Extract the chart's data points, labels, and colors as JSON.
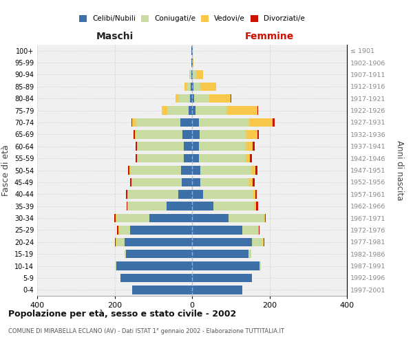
{
  "age_groups": [
    "0-4",
    "5-9",
    "10-14",
    "15-19",
    "20-24",
    "25-29",
    "30-34",
    "35-39",
    "40-44",
    "45-49",
    "50-54",
    "55-59",
    "60-64",
    "65-69",
    "70-74",
    "75-79",
    "80-84",
    "85-89",
    "90-94",
    "95-99",
    "100+"
  ],
  "birth_years": [
    "1997-2001",
    "1992-1996",
    "1987-1991",
    "1982-1986",
    "1977-1981",
    "1972-1976",
    "1967-1971",
    "1962-1966",
    "1957-1961",
    "1952-1956",
    "1947-1951",
    "1942-1946",
    "1937-1941",
    "1932-1936",
    "1927-1931",
    "1922-1926",
    "1917-1921",
    "1912-1916",
    "1907-1911",
    "1902-1906",
    "≤ 1901"
  ],
  "maschi": {
    "celibi": [
      155,
      185,
      195,
      170,
      175,
      160,
      110,
      65,
      35,
      26,
      28,
      22,
      22,
      25,
      30,
      9,
      5,
      3,
      2,
      1,
      1
    ],
    "coniugati": [
      0,
      0,
      2,
      5,
      20,
      28,
      85,
      100,
      130,
      128,
      130,
      118,
      118,
      120,
      115,
      55,
      28,
      12,
      5,
      1,
      0
    ],
    "vedovi": [
      0,
      0,
      0,
      0,
      2,
      2,
      3,
      2,
      2,
      2,
      3,
      2,
      2,
      3,
      10,
      15,
      10,
      5,
      1,
      0,
      0
    ],
    "divorziati": [
      0,
      0,
      0,
      0,
      2,
      3,
      3,
      2,
      3,
      4,
      5,
      4,
      4,
      3,
      2,
      0,
      0,
      0,
      0,
      0,
      0
    ]
  },
  "femmine": {
    "nubili": [
      130,
      155,
      175,
      145,
      155,
      130,
      95,
      55,
      28,
      22,
      22,
      18,
      18,
      20,
      18,
      8,
      5,
      4,
      2,
      1,
      1
    ],
    "coniugate": [
      0,
      0,
      2,
      8,
      28,
      40,
      90,
      105,
      130,
      125,
      130,
      120,
      120,
      120,
      130,
      80,
      40,
      18,
      8,
      1,
      0
    ],
    "vedove": [
      0,
      0,
      0,
      0,
      2,
      2,
      3,
      5,
      5,
      10,
      12,
      12,
      18,
      28,
      60,
      80,
      55,
      40,
      18,
      2,
      0
    ],
    "divorziate": [
      0,
      0,
      0,
      0,
      1,
      2,
      2,
      5,
      4,
      5,
      5,
      4,
      5,
      5,
      5,
      3,
      1,
      1,
      0,
      0,
      0
    ]
  },
  "colors": {
    "celibi": "#3d6fa8",
    "coniugati": "#c8dba0",
    "vedovi": "#f7c84a",
    "divorziati": "#cc1100"
  },
  "xlim": 400,
  "title": "Popolazione per età, sesso e stato civile - 2002",
  "subtitle": "COMUNE DI MIRABELLA ECLANO (AV) - Dati ISTAT 1° gennaio 2002 - Elaborazione TUTTITALIA.IT",
  "ylabel": "Fasce di età",
  "ylabel_right": "Anni di nascita",
  "xlabel_left": "Maschi",
  "xlabel_right": "Femmine",
  "bg_color": "#f0f0f0",
  "grid_color": "#cccccc"
}
